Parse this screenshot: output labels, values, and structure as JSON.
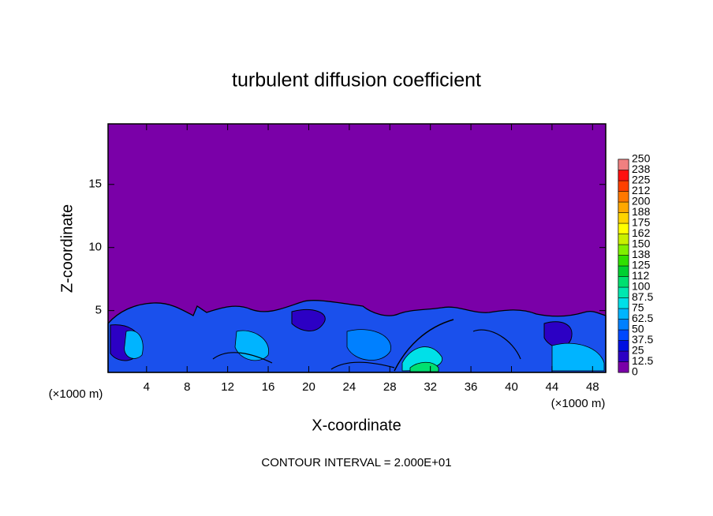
{
  "chart_data": {
    "type": "contour",
    "title": "turbulent diffusion coefficient",
    "xlabel": "X-coordinate",
    "ylabel": "Z-coordinate",
    "x_unit": "(×1000 m)",
    "y_unit": "(×1000 m)",
    "xlim": [
      0.2,
      49.3
    ],
    "ylim": [
      0.1,
      19.8
    ],
    "xticks": [
      4,
      8,
      12,
      16,
      20,
      24,
      28,
      32,
      36,
      40,
      44,
      48
    ],
    "yticks": [
      5,
      10,
      15
    ],
    "colorbar": {
      "levels": [
        0,
        12.5,
        25,
        37.5,
        50,
        62.5,
        75,
        87.5,
        100,
        112,
        125,
        138,
        150,
        162,
        175,
        188,
        200,
        212,
        225,
        238,
        250
      ],
      "colors": [
        "#7a00a8",
        "#2c00c4",
        "#0010e0",
        "#0048ff",
        "#0080ff",
        "#00b4ff",
        "#00e0e8",
        "#00e8b0",
        "#00e070",
        "#00d030",
        "#30e000",
        "#80f000",
        "#c8f000",
        "#ffff00",
        "#ffd400",
        "#ffa800",
        "#ff7800",
        "#ff4000",
        "#ff1010",
        "#f08080"
      ]
    },
    "annotation": "CONTOUR INTERVAL = 2.000E+01"
  }
}
